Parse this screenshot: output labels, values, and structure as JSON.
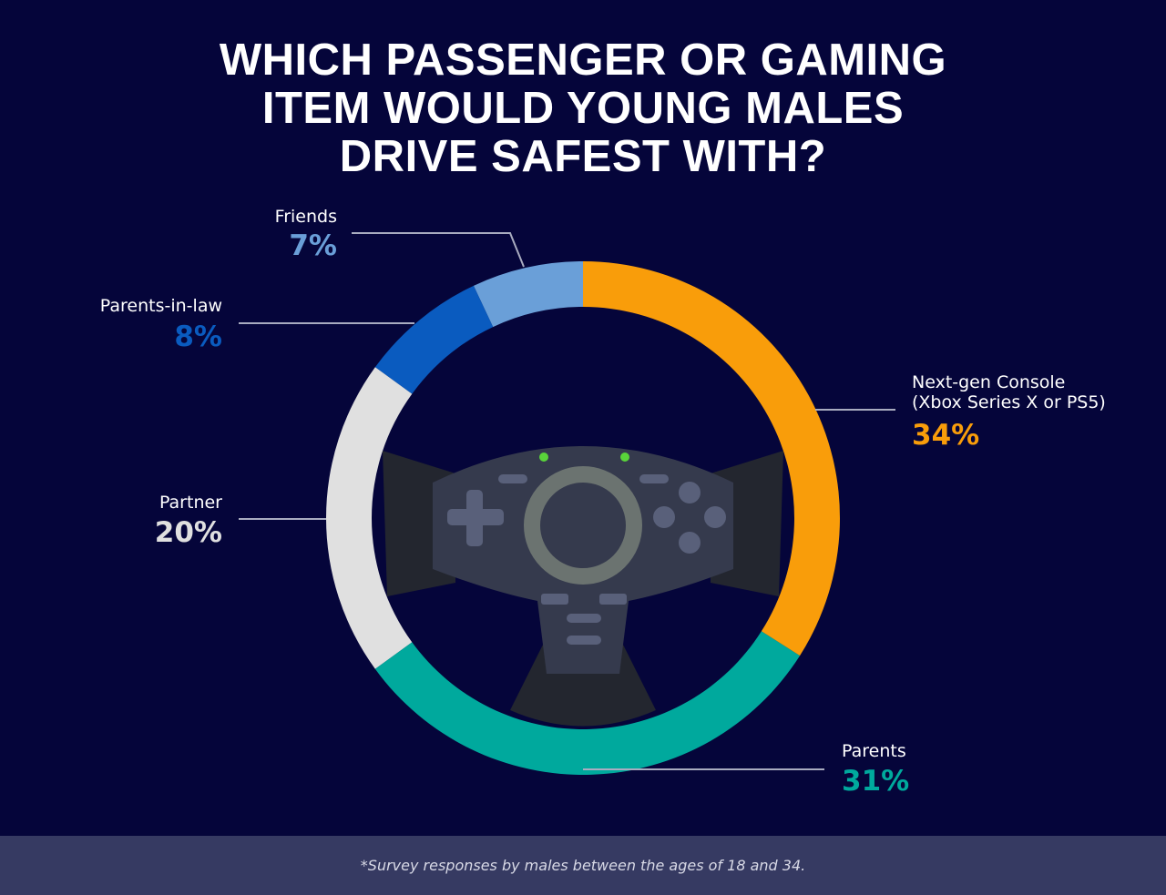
{
  "chart_data": {
    "type": "donut",
    "title": "WHICH PASSENGER OR GAMING\nITEM WOULD YOUNG MALES\nDRIVE SAFEST WITH?",
    "categories": [
      "Next-gen Console\n(Xbox Series X or PS5)",
      "Parents",
      "Partner",
      "Parents-in-law",
      "Friends"
    ],
    "values": [
      34,
      31,
      20,
      8,
      7
    ],
    "value_labels": [
      "34%",
      "31%",
      "20%",
      "8%",
      "7%"
    ],
    "colors": [
      "#f99d0a",
      "#00a99d",
      "#e0e0e0",
      "#0a5bbf",
      "#6a9fd8"
    ],
    "footnote": "*Survey responses by males between the ages of 18 and 34."
  }
}
